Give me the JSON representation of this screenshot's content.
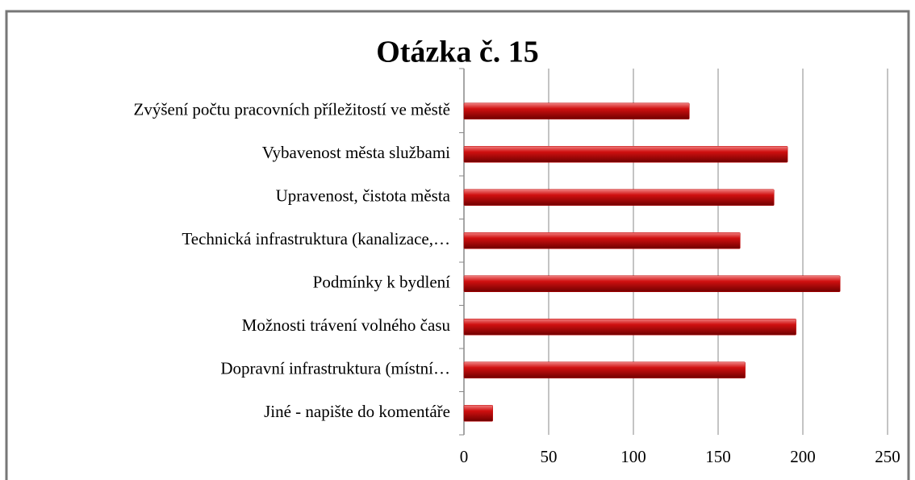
{
  "chart_data": {
    "type": "bar",
    "orientation": "horizontal",
    "title": "Otázka č. 15",
    "categories": [
      "Zvýšení počtu pracovních příležitostí ve městě",
      "Vybavenost města službami",
      "Upravenost, čistota města",
      "Technická infrastruktura (kanalizace,…",
      "Podmínky k bydlení",
      "Možnosti trávení volného času",
      "Dopravní infrastruktura (místní…",
      "Jiné - napište do komentáře"
    ],
    "values": [
      133,
      191,
      183,
      163,
      222,
      196,
      166,
      17
    ],
    "color": "#c00000",
    "xlim": [
      0,
      250
    ],
    "xticks": [
      0,
      50,
      100,
      150,
      200,
      250
    ],
    "grid": true
  }
}
